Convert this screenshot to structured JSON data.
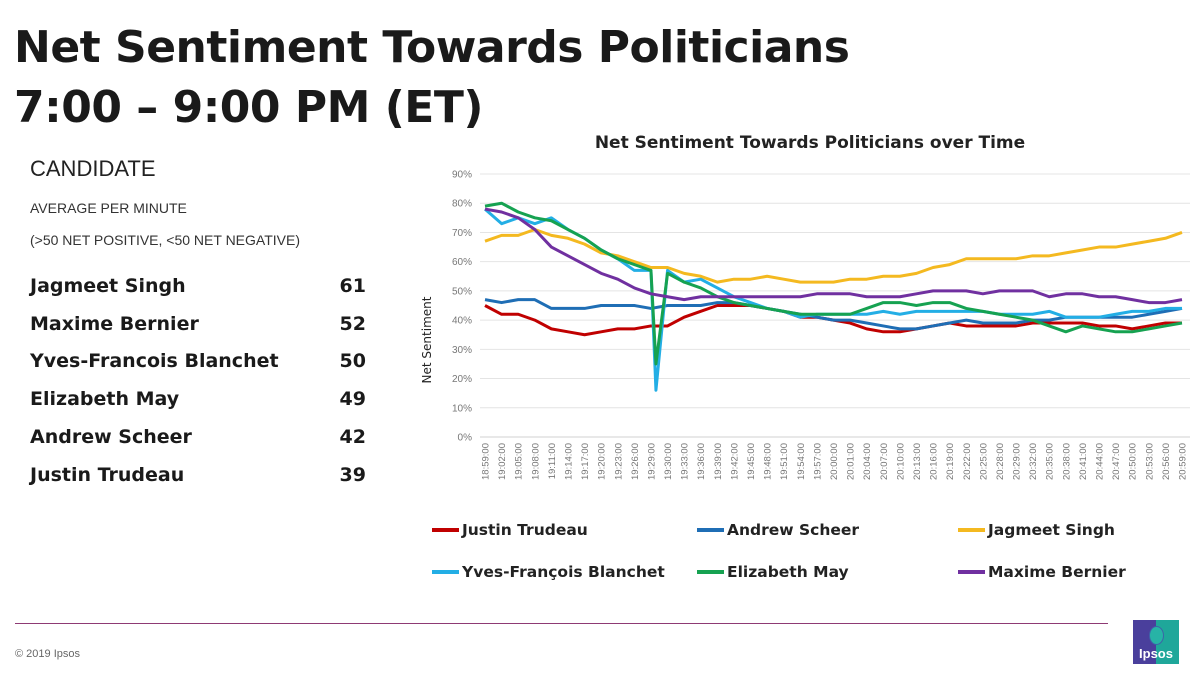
{
  "slide": {
    "title_line1": "Net Sentiment Towards Politicians",
    "title_line2": "7:00 – 9:00 PM (ET)",
    "candidate_header": "CANDIDATE",
    "average_label": "AVERAGE PER MINUTE",
    "average_note": "(>50 NET POSITIVE, <50 NET NEGATIVE)",
    "candidates": [
      {
        "name": "Jagmeet Singh",
        "score": "61"
      },
      {
        "name": "Maxime Bernier",
        "score": "52"
      },
      {
        "name": "Yves-Francois Blanchet",
        "score": "50"
      },
      {
        "name": "Elizabeth May",
        "score": "49"
      },
      {
        "name": "Andrew Scheer",
        "score": "42"
      },
      {
        "name": "Justin Trudeau",
        "score": "39"
      }
    ],
    "copyright": "© 2019 Ipsos",
    "logo_text": "Ipsos"
  },
  "chart_data": {
    "type": "line",
    "title": "Net Sentiment Towards Politicians over Time",
    "xlabel": "",
    "ylabel": "Net Sentiment",
    "ylim": [
      0,
      90
    ],
    "yticks": [
      "0%",
      "10%",
      "20%",
      "30%",
      "40%",
      "50%",
      "60%",
      "70%",
      "80%",
      "90%"
    ],
    "grid": true,
    "legend_position": "bottom",
    "categories": [
      "18:59:00",
      "19:02:00",
      "19:05:00",
      "19:08:00",
      "19:11:00",
      "19:14:00",
      "19:17:00",
      "19:20:00",
      "19:23:00",
      "19:26:00",
      "19:29:00",
      "19:30:00",
      "19:33:00",
      "19:36:00",
      "19:39:00",
      "19:42:00",
      "19:45:00",
      "19:48:00",
      "19:51:00",
      "19:54:00",
      "19:57:00",
      "20:00:00",
      "20:01:00",
      "20:04:00",
      "20:07:00",
      "20:10:00",
      "20:13:00",
      "20:16:00",
      "20:19:00",
      "20:22:00",
      "20:25:00",
      "20:28:00",
      "20:29:00",
      "20:32:00",
      "20:35:00",
      "20:38:00",
      "20:41:00",
      "20:44:00",
      "20:47:00",
      "20:50:00",
      "20:53:00",
      "20:56:00",
      "20:59:00"
    ],
    "series": [
      {
        "name": "Justin Trudeau",
        "color": "#c00000",
        "values": [
          45,
          42,
          42,
          40,
          37,
          36,
          35,
          36,
          37,
          37,
          38,
          38,
          41,
          43,
          45,
          45,
          45,
          44,
          43,
          41,
          41,
          40,
          39,
          37,
          36,
          36,
          37,
          38,
          39,
          38,
          38,
          38,
          38,
          39,
          39,
          39,
          39,
          38,
          38,
          37,
          38,
          39,
          39
        ]
      },
      {
        "name": "Andrew Scheer",
        "color": "#1f6eb5",
        "values": [
          47,
          46,
          47,
          47,
          44,
          44,
          44,
          45,
          45,
          45,
          44,
          45,
          45,
          45,
          46,
          46,
          45,
          44,
          43,
          42,
          41,
          40,
          40,
          39,
          38,
          37,
          37,
          38,
          39,
          40,
          39,
          39,
          39,
          40,
          40,
          41,
          41,
          41,
          41,
          41,
          42,
          43,
          44
        ]
      },
      {
        "name": "Jagmeet Singh",
        "color": "#f4b920",
        "values": [
          67,
          69,
          69,
          71,
          69,
          68,
          66,
          63,
          62,
          60,
          58,
          58,
          56,
          55,
          53,
          54,
          54,
          55,
          54,
          53,
          53,
          53,
          54,
          54,
          55,
          55,
          56,
          58,
          59,
          61,
          61,
          61,
          61,
          62,
          62,
          63,
          64,
          65,
          65,
          66,
          67,
          68,
          70
        ]
      },
      {
        "name": "Yves-François Blanchet",
        "color": "#23aee5",
        "values": [
          78,
          73,
          75,
          73,
          75,
          71,
          68,
          64,
          61,
          57,
          57,
          57,
          53,
          54,
          51,
          48,
          46,
          44,
          43,
          41,
          42,
          42,
          42,
          42,
          43,
          42,
          43,
          43,
          43,
          43,
          43,
          42,
          42,
          42,
          43,
          41,
          41,
          41,
          42,
          43,
          43,
          44,
          44
        ],
        "dip_between": [
          "19:29:00",
          "19:30:00"
        ],
        "dip_value": 16
      },
      {
        "name": "Elizabeth May",
        "color": "#16a251",
        "values": [
          79,
          80,
          77,
          75,
          74,
          71,
          68,
          64,
          61,
          59,
          57,
          56,
          53,
          51,
          48,
          46,
          45,
          44,
          43,
          42,
          42,
          42,
          42,
          44,
          46,
          46,
          45,
          46,
          46,
          44,
          43,
          42,
          41,
          40,
          38,
          36,
          38,
          37,
          36,
          36,
          37,
          38,
          39
        ],
        "dip_between": [
          "19:29:00",
          "19:30:00"
        ],
        "dip_value": 25
      },
      {
        "name": "Maxime Bernier",
        "color": "#7030a0",
        "values": [
          78,
          77,
          75,
          71,
          65,
          62,
          59,
          56,
          54,
          51,
          49,
          48,
          47,
          48,
          48,
          48,
          48,
          48,
          48,
          48,
          49,
          49,
          49,
          48,
          48,
          48,
          49,
          50,
          50,
          50,
          49,
          50,
          50,
          50,
          48,
          49,
          49,
          48,
          48,
          47,
          46,
          46,
          47
        ]
      }
    ]
  }
}
